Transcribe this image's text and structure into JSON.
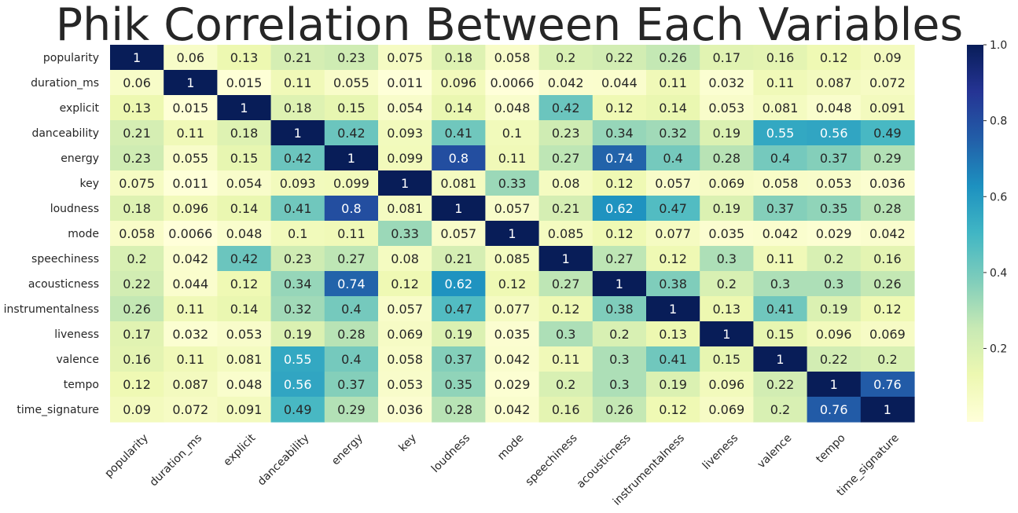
{
  "chart_data": {
    "type": "heatmap",
    "title": "Phik Correlation Between Each Variables",
    "xlabel": "",
    "ylabel": "",
    "variables": [
      "popularity",
      "duration_ms",
      "explicit",
      "danceability",
      "energy",
      "key",
      "loudness",
      "mode",
      "speechiness",
      "acousticness",
      "instrumentalness",
      "liveness",
      "valence",
      "tempo",
      "time_signature"
    ],
    "labels": [
      [
        "1",
        "0.06",
        "0.13",
        "0.21",
        "0.23",
        "0.075",
        "0.18",
        "0.058",
        "0.2",
        "0.22",
        "0.26",
        "0.17",
        "0.16",
        "0.12",
        "0.09"
      ],
      [
        "0.06",
        "1",
        "0.015",
        "0.11",
        "0.055",
        "0.011",
        "0.096",
        "0.0066",
        "0.042",
        "0.044",
        "0.11",
        "0.032",
        "0.11",
        "0.087",
        "0.072"
      ],
      [
        "0.13",
        "0.015",
        "1",
        "0.18",
        "0.15",
        "0.054",
        "0.14",
        "0.048",
        "0.42",
        "0.12",
        "0.14",
        "0.053",
        "0.081",
        "0.048",
        "0.091"
      ],
      [
        "0.21",
        "0.11",
        "0.18",
        "1",
        "0.42",
        "0.093",
        "0.41",
        "0.1",
        "0.23",
        "0.34",
        "0.32",
        "0.19",
        "0.55",
        "0.56",
        "0.49"
      ],
      [
        "0.23",
        "0.055",
        "0.15",
        "0.42",
        "1",
        "0.099",
        "0.8",
        "0.11",
        "0.27",
        "0.74",
        "0.4",
        "0.28",
        "0.4",
        "0.37",
        "0.29"
      ],
      [
        "0.075",
        "0.011",
        "0.054",
        "0.093",
        "0.099",
        "1",
        "0.081",
        "0.33",
        "0.08",
        "0.12",
        "0.057",
        "0.069",
        "0.058",
        "0.053",
        "0.036"
      ],
      [
        "0.18",
        "0.096",
        "0.14",
        "0.41",
        "0.8",
        "0.081",
        "1",
        "0.057",
        "0.21",
        "0.62",
        "0.47",
        "0.19",
        "0.37",
        "0.35",
        "0.28"
      ],
      [
        "0.058",
        "0.0066",
        "0.048",
        "0.1",
        "0.11",
        "0.33",
        "0.057",
        "1",
        "0.085",
        "0.12",
        "0.077",
        "0.035",
        "0.042",
        "0.029",
        "0.042"
      ],
      [
        "0.2",
        "0.042",
        "0.42",
        "0.23",
        "0.27",
        "0.08",
        "0.21",
        "0.085",
        "1",
        "0.27",
        "0.12",
        "0.3",
        "0.11",
        "0.2",
        "0.16"
      ],
      [
        "0.22",
        "0.044",
        "0.12",
        "0.34",
        "0.74",
        "0.12",
        "0.62",
        "0.12",
        "0.27",
        "1",
        "0.38",
        "0.2",
        "0.3",
        "0.3",
        "0.26"
      ],
      [
        "0.26",
        "0.11",
        "0.14",
        "0.32",
        "0.4",
        "0.057",
        "0.47",
        "0.077",
        "0.12",
        "0.38",
        "1",
        "0.13",
        "0.41",
        "0.19",
        "0.12"
      ],
      [
        "0.17",
        "0.032",
        "0.053",
        "0.19",
        "0.28",
        "0.069",
        "0.19",
        "0.035",
        "0.3",
        "0.2",
        "0.13",
        "1",
        "0.15",
        "0.096",
        "0.069"
      ],
      [
        "0.16",
        "0.11",
        "0.081",
        "0.55",
        "0.4",
        "0.058",
        "0.37",
        "0.042",
        "0.11",
        "0.3",
        "0.41",
        "0.15",
        "1",
        "0.22",
        "0.2"
      ],
      [
        "0.12",
        "0.087",
        "0.048",
        "0.56",
        "0.37",
        "0.053",
        "0.35",
        "0.029",
        "0.2",
        "0.3",
        "0.19",
        "0.096",
        "0.22",
        "1",
        "0.76"
      ],
      [
        "0.09",
        "0.072",
        "0.091",
        "0.49",
        "0.29",
        "0.036",
        "0.28",
        "0.042",
        "0.16",
        "0.26",
        "0.12",
        "0.069",
        "0.2",
        "0.76",
        "1"
      ]
    ],
    "colorbar": {
      "colormap": "YlGnBu",
      "vmin": 0.0066,
      "vmax": 1.0,
      "ticks": [
        "0.2",
        "0.4",
        "0.6",
        "0.8",
        "1.0"
      ]
    },
    "colormap_stops": [
      "#ffffd9",
      "#edf8b1",
      "#c7e9b4",
      "#7fcdbb",
      "#41b6c4",
      "#1d91c0",
      "#225ea8",
      "#253494",
      "#081d58"
    ]
  }
}
